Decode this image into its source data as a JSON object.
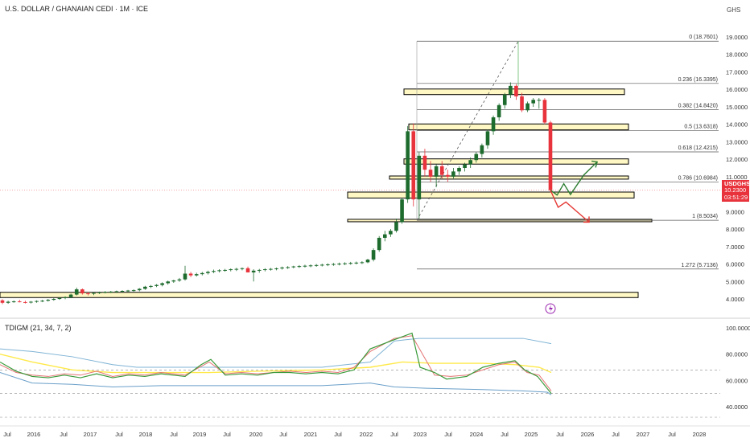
{
  "header": {
    "symbol_title": "U.S. DOLLAR / GHANAIAN CEDI · 1M · ICE",
    "currency": "GHS"
  },
  "price_tag": {
    "symbol": "USDGHS",
    "price": "10.2300",
    "countdown": "03:51:29"
  },
  "indicator": {
    "title": "TDIGM (21, 34, 7, 2)"
  },
  "colors": {
    "up": "#1e6b2e",
    "down": "#e8333c",
    "zone_fill": "#fff8c4",
    "fib_line": "#555555",
    "arrow_green": "#2e7d32",
    "arrow_red": "#e53935",
    "upper_band": "#7fb3d5",
    "lower_band": "#6a9fc9",
    "yellow": "#ffe94a",
    "rsi_green": "#3a9a3a",
    "rsi_red": "#e57373",
    "lightning": "#9c27b0"
  },
  "chart_data": {
    "type": "candlestick",
    "y_axis": {
      "ticks": [
        "4.0000",
        "5.0000",
        "6.0000",
        "7.0000",
        "8.0000",
        "9.0000",
        "11.0000",
        "12.0000",
        "13.0000",
        "14.0000",
        "15.0000",
        "16.0000",
        "17.0000",
        "18.0000",
        "19.0000"
      ],
      "range": [
        3.2,
        19.5
      ]
    },
    "x_axis": {
      "ticks": [
        "Jul",
        "2016",
        "Jul",
        "2017",
        "Jul",
        "2018",
        "Jul",
        "2019",
        "Jul",
        "2020",
        "Jul",
        "2021",
        "Jul",
        "2022",
        "Jul",
        "2023",
        "Jul",
        "2024",
        "Jul",
        "2025",
        "Jul",
        "2026",
        "Jul",
        "2027",
        "Jul",
        "2028"
      ]
    },
    "fib_levels": [
      {
        "label": "0 (18.7601)",
        "value": 18.7601
      },
      {
        "label": "0.236 (16.3395)",
        "value": 16.3395
      },
      {
        "label": "0.382 (14.8420)",
        "value": 14.842
      },
      {
        "label": "0.5 (13.6318)",
        "value": 13.6318
      },
      {
        "label": "0.618 (12.4215)",
        "value": 12.4215
      },
      {
        "label": "0.786 (10.6984)",
        "value": 10.6984
      },
      {
        "label": "1 (8.5034)",
        "value": 8.5034
      },
      {
        "label": "1.272 (5.7136)",
        "value": 5.7136
      }
    ],
    "zones": [
      {
        "top": 16.02,
        "bottom": 15.7
      },
      {
        "top": 14.02,
        "bottom": 13.68
      },
      {
        "top": 12.02,
        "bottom": 11.72
      },
      {
        "top": 11.04,
        "bottom": 10.86
      },
      {
        "top": 10.12,
        "bottom": 9.78
      },
      {
        "top": 8.56,
        "bottom": 8.42
      },
      {
        "top": 4.38,
        "bottom": 4.08
      }
    ],
    "candles": [
      [
        3.92,
        3.98,
        3.7,
        3.78
      ],
      [
        3.78,
        3.9,
        3.72,
        3.84
      ],
      [
        3.84,
        3.92,
        3.78,
        3.86
      ],
      [
        3.86,
        3.95,
        3.8,
        3.82
      ],
      [
        3.82,
        3.9,
        3.74,
        3.8
      ],
      [
        3.8,
        3.88,
        3.74,
        3.84
      ],
      [
        3.84,
        3.92,
        3.78,
        3.88
      ],
      [
        3.88,
        3.95,
        3.82,
        3.9
      ],
      [
        3.9,
        4.0,
        3.85,
        3.95
      ],
      [
        3.95,
        4.05,
        3.9,
        4.0
      ],
      [
        4.0,
        4.1,
        3.95,
        4.05
      ],
      [
        4.05,
        4.15,
        3.98,
        4.1
      ],
      [
        4.1,
        4.3,
        4.05,
        4.25
      ],
      [
        4.25,
        4.65,
        4.2,
        4.55
      ],
      [
        4.55,
        4.6,
        4.25,
        4.32
      ],
      [
        4.32,
        4.4,
        4.2,
        4.3
      ],
      [
        4.3,
        4.38,
        4.22,
        4.34
      ],
      [
        4.34,
        4.42,
        4.28,
        4.38
      ],
      [
        4.38,
        4.45,
        4.32,
        4.4
      ],
      [
        4.4,
        4.46,
        4.34,
        4.42
      ],
      [
        4.42,
        4.48,
        4.36,
        4.44
      ],
      [
        4.44,
        4.5,
        4.38,
        4.46
      ],
      [
        4.46,
        4.52,
        4.4,
        4.48
      ],
      [
        4.48,
        4.55,
        4.42,
        4.5
      ],
      [
        4.5,
        4.62,
        4.44,
        4.58
      ],
      [
        4.58,
        4.75,
        4.52,
        4.7
      ],
      [
        4.7,
        4.8,
        4.62,
        4.74
      ],
      [
        4.74,
        4.85,
        4.68,
        4.8
      ],
      [
        4.8,
        4.95,
        4.72,
        4.9
      ],
      [
        4.9,
        5.05,
        4.82,
        5.0
      ],
      [
        5.0,
        5.1,
        4.92,
        5.06
      ],
      [
        5.06,
        5.2,
        4.98,
        5.12
      ],
      [
        5.12,
        5.9,
        5.05,
        5.45
      ],
      [
        5.45,
        5.55,
        5.25,
        5.35
      ],
      [
        5.35,
        5.5,
        5.28,
        5.42
      ],
      [
        5.42,
        5.55,
        5.35,
        5.48
      ],
      [
        5.48,
        5.62,
        5.4,
        5.55
      ],
      [
        5.55,
        5.68,
        5.48,
        5.6
      ],
      [
        5.6,
        5.7,
        5.52,
        5.64
      ],
      [
        5.64,
        5.72,
        5.56,
        5.66
      ],
      [
        5.66,
        5.75,
        5.58,
        5.7
      ],
      [
        5.7,
        5.78,
        5.6,
        5.72
      ],
      [
        5.72,
        5.8,
        5.64,
        5.76
      ],
      [
        5.76,
        5.85,
        5.66,
        5.52
      ],
      [
        5.52,
        5.7,
        5.0,
        5.62
      ],
      [
        5.62,
        5.72,
        5.5,
        5.66
      ],
      [
        5.66,
        5.76,
        5.58,
        5.7
      ],
      [
        5.7,
        5.78,
        5.62,
        5.72
      ],
      [
        5.72,
        5.8,
        5.64,
        5.75
      ],
      [
        5.75,
        5.85,
        5.68,
        5.8
      ],
      [
        5.8,
        5.88,
        5.72,
        5.82
      ],
      [
        5.82,
        5.9,
        5.76,
        5.86
      ],
      [
        5.86,
        5.94,
        5.78,
        5.88
      ],
      [
        5.88,
        5.96,
        5.8,
        5.9
      ],
      [
        5.9,
        5.98,
        5.82,
        5.92
      ],
      [
        5.92,
        6.0,
        5.84,
        5.94
      ],
      [
        5.94,
        6.02,
        5.86,
        5.96
      ],
      [
        5.96,
        6.04,
        5.88,
        5.98
      ],
      [
        5.98,
        6.06,
        5.9,
        6.0
      ],
      [
        6.0,
        6.08,
        5.92,
        6.02
      ],
      [
        6.02,
        6.1,
        5.94,
        6.04
      ],
      [
        6.04,
        6.12,
        5.96,
        6.06
      ],
      [
        6.06,
        6.14,
        5.98,
        6.08
      ],
      [
        6.08,
        6.16,
        6.0,
        6.1
      ],
      [
        6.1,
        6.3,
        6.05,
        6.25
      ],
      [
        6.25,
        6.9,
        6.15,
        6.8
      ],
      [
        6.8,
        7.6,
        6.7,
        7.5
      ],
      [
        7.5,
        7.9,
        7.3,
        7.7
      ],
      [
        7.7,
        8.0,
        7.55,
        7.9
      ],
      [
        7.9,
        8.6,
        7.8,
        8.4
      ],
      [
        8.4,
        9.8,
        8.3,
        9.7
      ],
      [
        9.7,
        13.9,
        9.5,
        13.6
      ],
      [
        13.6,
        14.05,
        9.3,
        9.7
      ],
      [
        9.7,
        12.4,
        8.6,
        12.2
      ],
      [
        12.2,
        12.6,
        11.0,
        11.4
      ],
      [
        11.4,
        11.9,
        10.7,
        11.0
      ],
      [
        11.0,
        11.7,
        10.4,
        11.6
      ],
      [
        11.6,
        11.9,
        10.9,
        11.1
      ],
      [
        11.1,
        11.4,
        10.7,
        11.0
      ],
      [
        11.0,
        11.5,
        10.9,
        11.3
      ],
      [
        11.3,
        11.6,
        11.1,
        11.5
      ],
      [
        11.5,
        11.8,
        11.3,
        11.7
      ],
      [
        11.7,
        12.1,
        11.5,
        11.95
      ],
      [
        11.95,
        12.4,
        11.8,
        12.3
      ],
      [
        12.3,
        12.9,
        12.1,
        12.8
      ],
      [
        12.8,
        13.7,
        12.6,
        13.6
      ],
      [
        13.6,
        14.5,
        13.4,
        14.4
      ],
      [
        14.4,
        15.2,
        14.2,
        15.1
      ],
      [
        15.1,
        15.8,
        14.9,
        15.7
      ],
      [
        15.7,
        16.4,
        15.5,
        16.2
      ],
      [
        16.2,
        16.3,
        15.4,
        15.6
      ],
      [
        15.6,
        15.8,
        14.7,
        14.8
      ],
      [
        14.8,
        15.3,
        14.7,
        15.2
      ],
      [
        15.2,
        15.5,
        15.0,
        15.4
      ],
      [
        15.4,
        15.5,
        14.9,
        15.4
      ],
      [
        15.4,
        15.5,
        14.0,
        14.1
      ],
      [
        14.1,
        14.2,
        10.1,
        10.23
      ]
    ],
    "projection_green": [
      [
        10.23,
        0
      ],
      [
        9.95,
        1
      ],
      [
        10.6,
        2
      ],
      [
        9.98,
        3
      ],
      [
        11.1,
        5
      ],
      [
        11.85,
        7
      ]
    ],
    "projection_red": [
      [
        10.23,
        0
      ],
      [
        9.25,
        1
      ],
      [
        9.55,
        2
      ],
      [
        8.4,
        5
      ]
    ],
    "indicator_axis": {
      "ticks": [
        "100.0000",
        "80.0000",
        "60.0000",
        "40.0000"
      ],
      "range": [
        30,
        102
      ]
    }
  }
}
